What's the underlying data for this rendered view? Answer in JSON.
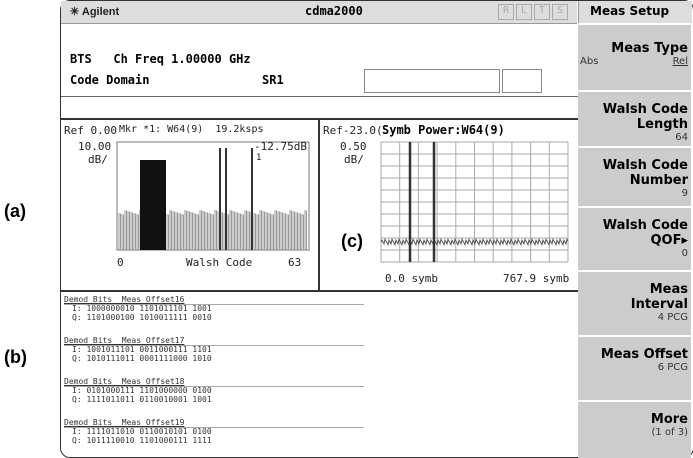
{
  "labels": {
    "a": "(a)",
    "b": "(b)",
    "c": "(c)"
  },
  "top_bar": {
    "brand": "Agilent",
    "mode": "cdma2000",
    "indicators": [
      "R",
      "L",
      "T",
      "S"
    ],
    "menu_title": "Meas Setup"
  },
  "header": {
    "line1": "BTS   Ch Freq 1.00000 GHz",
    "line2": "Code Domain",
    "rate": "SR1"
  },
  "left_plot": {
    "ref": "Ref 0.00",
    "marker": "Mkr *1: W64(9)  19.2ksps",
    "scale": "10.00",
    "unit": "dB/",
    "marker_value": "-12.75dB",
    "marker_id": "1",
    "x_start": "0",
    "x_label": "Walsh Code",
    "x_end": "63"
  },
  "right_plot": {
    "ref": "Ref-23.0(",
    "title": "Symb Power:W64(9)",
    "scale": "0.50",
    "unit": "dB/",
    "x_start": "0.0 symb",
    "x_end": "767.9 symb"
  },
  "demod": [
    {
      "title": "Demod Bits  Meas Offset16",
      "i": "I: 1000000010 1101011101 1001",
      "q": "Q: 1101000100 1010011111 0010"
    },
    {
      "title": "Demod Bits  Meas Offset17",
      "i": "I: 1001011101 0011000111 1101",
      "q": "Q: 1010111011 0001111000 1010"
    },
    {
      "title": "Demod Bits  Meas Offset18",
      "i": "I: 0101000111 1101000000 0100",
      "q": "Q: 1111011011 0110010001 1001"
    },
    {
      "title": "Demod Bits  Meas Offset19",
      "i": "I: 1111011010 0110010101 0100",
      "q": "Q: 1011110010 1101000111 1111"
    }
  ],
  "softkeys": [
    {
      "label": "Meas Type",
      "left": "Abs",
      "right": "Rel"
    },
    {
      "label": "Walsh Code Length",
      "value": "64"
    },
    {
      "label": "Walsh Code Number",
      "value": "9"
    },
    {
      "label": "Walsh Code QOF▸",
      "value": "0"
    },
    {
      "label": "Meas Interval",
      "value": "4 PCG"
    },
    {
      "label": "Meas Offset",
      "value": "6 PCG"
    },
    {
      "label": "More",
      "value": "(1 of 3)"
    }
  ]
}
